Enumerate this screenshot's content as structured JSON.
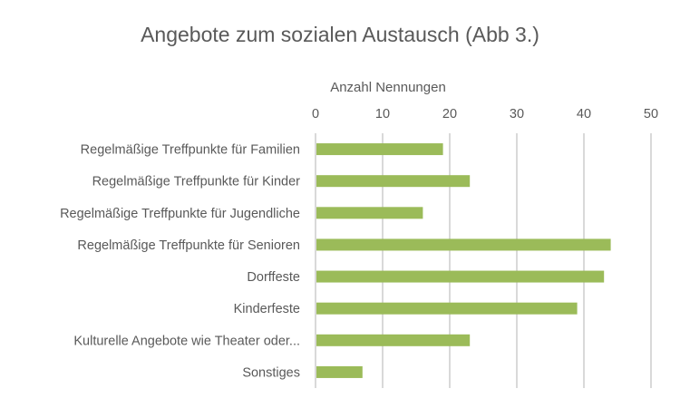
{
  "chart_data": {
    "type": "bar",
    "orientation": "horizontal",
    "title": "Angebote zum sozialen Austausch (Abb 3.)",
    "xlabel": "Anzahl Nennungen",
    "ylabel": "",
    "xlim": [
      0,
      50
    ],
    "ticks": [
      0,
      10,
      20,
      30,
      40,
      50
    ],
    "tick_labels": [
      "0",
      "10",
      "20",
      "30",
      "40",
      "50"
    ],
    "grid": true,
    "axis_position": "top",
    "categories": [
      "Regelmäßige Treffpunkte für Familien",
      "Regelmäßige Treffpunkte für Kinder",
      "Regelmäßige Treffpunkte für Jugendliche",
      "Regelmäßige Treffpunkte für Senioren",
      "Dorffeste",
      "Kinderfeste",
      "Kulturelle Angebote wie Theater oder...",
      "Sonstiges"
    ],
    "values": [
      19,
      23,
      16,
      44,
      43,
      39,
      23,
      7
    ],
    "bar_color": "#9bbb59"
  }
}
